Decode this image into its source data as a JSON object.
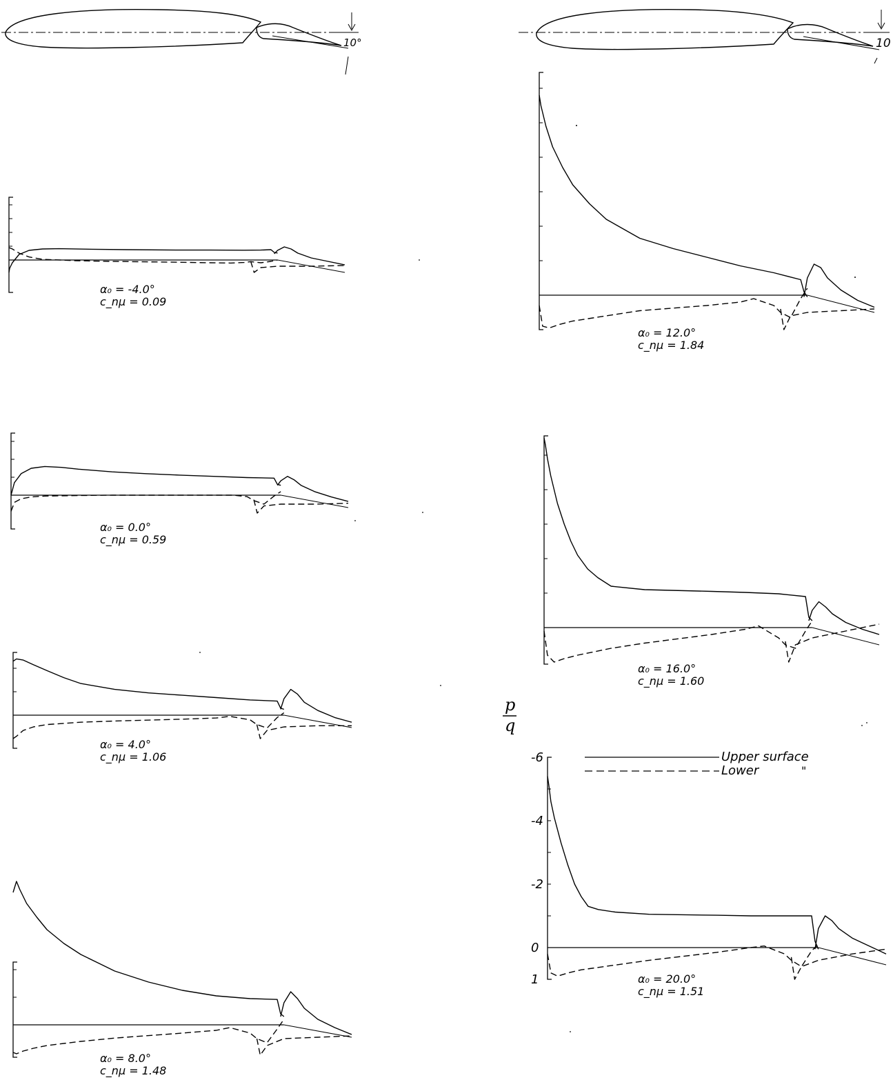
{
  "legend": {
    "upper_label": "Upper surface",
    "lower_label": "Lower",
    "lower_ditto": "\""
  },
  "airfoils": [
    {
      "flap_angle_label": "10°"
    },
    {
      "flap_angle_label": "10"
    }
  ],
  "ylabel": {
    "numerator": "p",
    "denominator": "q"
  },
  "colors": {
    "ink": "#000000",
    "paper": "#ffffff"
  },
  "chart_data": [
    {
      "type": "line",
      "alpha_label": "α₀ = -4.0°",
      "cmu_label": "c_nμ = 0.09",
      "ylim": [
        -6,
        1
      ],
      "series": [
        {
          "style": "solid",
          "x": [
            0,
            0.002,
            0.01,
            0.03,
            0.06,
            0.1,
            0.15,
            0.25,
            0.35,
            0.5,
            0.6,
            0.7,
            0.75,
            0.78,
            0.79,
            0.8
          ],
          "y": [
            0.9,
            0.6,
            0.2,
            -0.4,
            -0.7,
            -0.8,
            -0.82,
            -0.78,
            -0.75,
            -0.72,
            -0.72,
            -0.71,
            -0.72,
            -0.75,
            -0.55,
            -0.5
          ]
        },
        {
          "style": "dashed",
          "x": [
            0,
            0.01,
            0.03,
            0.06,
            0.1,
            0.2,
            0.3,
            0.5,
            0.6,
            0.66,
            0.7,
            0.72,
            0.75,
            0.78,
            0.8
          ],
          "y": [
            -0.9,
            -0.8,
            -0.5,
            -0.22,
            -0.05,
            0.05,
            0.1,
            0.16,
            0.2,
            0.22,
            0.18,
            0.12,
            0.2,
            0.1,
            0.0
          ]
        },
        {
          "style": "solid",
          "x": [
            0.79,
            0.8,
            0.82,
            0.84,
            0.86,
            0.9,
            0.95,
            1.0
          ],
          "y": [
            -0.45,
            -0.7,
            -0.95,
            -0.8,
            -0.5,
            -0.15,
            0.1,
            0.35
          ]
        },
        {
          "style": "dashed",
          "x": [
            0.72,
            0.73,
            0.75,
            0.8,
            0.9,
            1.0
          ],
          "y": [
            0.1,
            0.9,
            0.55,
            0.45,
            0.45,
            0.4
          ]
        }
      ]
    },
    {
      "type": "line",
      "alpha_label": "α₀ = 0.0°",
      "cmu_label": "c_nμ = 0.59",
      "ylim": [
        -6,
        1
      ],
      "series": [
        {
          "style": "solid",
          "x": [
            0,
            0.01,
            0.03,
            0.06,
            0.1,
            0.15,
            0.2,
            0.3,
            0.4,
            0.5,
            0.6,
            0.7,
            0.78,
            0.79,
            0.8
          ],
          "y": [
            0,
            -0.7,
            -1.2,
            -1.5,
            -1.6,
            -1.55,
            -1.45,
            -1.3,
            -1.2,
            -1.12,
            -1.05,
            -0.98,
            -0.95,
            -0.6,
            -0.55
          ]
        },
        {
          "style": "dashed",
          "x": [
            0,
            0.01,
            0.03,
            0.06,
            0.1,
            0.2,
            0.3,
            0.5,
            0.6,
            0.66,
            0.7,
            0.72,
            0.75,
            0.78,
            0.8
          ],
          "y": [
            0.9,
            0.4,
            0.2,
            0.1,
            0.05,
            0.02,
            0.0,
            0.0,
            0.0,
            0.0,
            0.08,
            0.3,
            0.5,
            0.05,
            -0.2
          ]
        },
        {
          "style": "solid",
          "x": [
            0.79,
            0.8,
            0.82,
            0.84,
            0.86,
            0.9,
            0.95,
            1.0
          ],
          "y": [
            -0.55,
            -0.8,
            -1.05,
            -0.85,
            -0.55,
            -0.2,
            0.1,
            0.35
          ]
        },
        {
          "style": "dashed",
          "x": [
            0.72,
            0.73,
            0.75,
            0.8,
            0.9,
            1.0
          ],
          "y": [
            0.25,
            1.0,
            0.6,
            0.5,
            0.5,
            0.45
          ]
        }
      ]
    },
    {
      "type": "line",
      "alpha_label": "α₀ = 4.0°",
      "cmu_label": "c_nμ = 1.06",
      "ylim": [
        -6,
        1
      ],
      "series": [
        {
          "style": "solid",
          "x": [
            0,
            0.01,
            0.03,
            0.06,
            0.1,
            0.15,
            0.2,
            0.3,
            0.4,
            0.5,
            0.6,
            0.7,
            0.78,
            0.79,
            0.8
          ],
          "y": [
            -2.3,
            -2.4,
            -2.35,
            -2.15,
            -1.9,
            -1.6,
            -1.35,
            -1.1,
            -0.95,
            -0.85,
            -0.75,
            -0.65,
            -0.6,
            -0.3,
            -0.25
          ]
        },
        {
          "style": "dashed",
          "x": [
            0,
            0.01,
            0.03,
            0.06,
            0.1,
            0.2,
            0.3,
            0.5,
            0.6,
            0.64,
            0.7,
            0.72,
            0.75,
            0.78,
            0.8
          ],
          "y": [
            1.0,
            0.9,
            0.65,
            0.5,
            0.4,
            0.3,
            0.25,
            0.17,
            0.12,
            0.05,
            0.2,
            0.4,
            0.55,
            0.1,
            -0.1
          ]
        },
        {
          "style": "solid",
          "x": [
            0.79,
            0.8,
            0.82,
            0.84,
            0.86,
            0.9,
            0.95,
            1.0
          ],
          "y": [
            -0.25,
            -0.7,
            -1.1,
            -0.9,
            -0.55,
            -0.2,
            0.1,
            0.3
          ]
        },
        {
          "style": "dashed",
          "x": [
            0.72,
            0.73,
            0.75,
            0.8,
            0.9,
            1.0
          ],
          "y": [
            0.4,
            1.0,
            0.65,
            0.5,
            0.45,
            0.45
          ]
        }
      ]
    },
    {
      "type": "line",
      "alpha_label": "α₀ = 8.0°",
      "cmu_label": "c_nμ = 1.48",
      "ylim": [
        -6,
        1
      ],
      "series": [
        {
          "style": "solid",
          "x": [
            0,
            0.01,
            0.02,
            0.04,
            0.07,
            0.1,
            0.15,
            0.2,
            0.3,
            0.4,
            0.5,
            0.6,
            0.7,
            0.78,
            0.79,
            0.8
          ],
          "y": [
            -4.8,
            -5.2,
            -4.9,
            -4.4,
            -3.9,
            -3.45,
            -2.95,
            -2.55,
            -1.95,
            -1.55,
            -1.25,
            -1.05,
            -0.95,
            -0.92,
            -0.4,
            -0.3
          ]
        },
        {
          "style": "dashed",
          "x": [
            0,
            0.01,
            0.03,
            0.06,
            0.1,
            0.2,
            0.3,
            0.5,
            0.6,
            0.64,
            0.7,
            0.72,
            0.75,
            0.78,
            0.8
          ],
          "y": [
            1.0,
            1.05,
            0.95,
            0.85,
            0.75,
            0.6,
            0.48,
            0.3,
            0.2,
            0.1,
            0.3,
            0.5,
            0.65,
            0.15,
            -0.2
          ]
        },
        {
          "style": "solid",
          "x": [
            0.79,
            0.8,
            0.82,
            0.84,
            0.86,
            0.9,
            0.95,
            1.0
          ],
          "y": [
            -0.3,
            -0.8,
            -1.2,
            -0.95,
            -0.6,
            -0.2,
            0.1,
            0.35
          ]
        },
        {
          "style": "dashed",
          "x": [
            0.72,
            0.73,
            0.75,
            0.8,
            0.9,
            1.0
          ],
          "y": [
            0.5,
            1.1,
            0.75,
            0.5,
            0.45,
            0.4
          ]
        }
      ]
    },
    {
      "type": "line",
      "alpha_label": "α₀ = 12.0°",
      "cmu_label": "c_nμ = 1.84",
      "ylim": [
        -6,
        1
      ],
      "series": [
        {
          "style": "solid",
          "x": [
            0,
            0.005,
            0.02,
            0.04,
            0.07,
            0.1,
            0.15,
            0.2,
            0.3,
            0.4,
            0.5,
            0.6,
            0.7,
            0.78,
            0.79,
            0.8
          ],
          "y": [
            -5.8,
            -5.5,
            -4.9,
            -4.3,
            -3.7,
            -3.2,
            -2.65,
            -2.2,
            -1.65,
            -1.35,
            -1.1,
            -0.85,
            -0.65,
            -0.45,
            -0.1,
            0.05
          ]
        },
        {
          "style": "dashed",
          "x": [
            0,
            0.01,
            0.03,
            0.06,
            0.1,
            0.2,
            0.3,
            0.5,
            0.6,
            0.64,
            0.7,
            0.72,
            0.75,
            0.78,
            0.8
          ],
          "y": [
            0.3,
            0.9,
            0.95,
            0.85,
            0.75,
            0.6,
            0.45,
            0.3,
            0.2,
            0.1,
            0.3,
            0.5,
            0.65,
            0.1,
            -0.2
          ]
        },
        {
          "style": "solid",
          "x": [
            0.79,
            0.8,
            0.82,
            0.84,
            0.86,
            0.9,
            0.95,
            1.0
          ],
          "y": [
            0.05,
            -0.5,
            -0.9,
            -0.8,
            -0.5,
            -0.15,
            0.15,
            0.35
          ]
        },
        {
          "style": "dashed",
          "x": [
            0.72,
            0.73,
            0.75,
            0.8,
            0.9,
            1.0
          ],
          "y": [
            0.4,
            1.0,
            0.6,
            0.5,
            0.45,
            0.4
          ]
        }
      ]
    },
    {
      "type": "line",
      "alpha_label": "α₀ = 16.0°",
      "cmu_label": "c_nμ = 1.60",
      "ylim": [
        -6,
        1
      ],
      "series": [
        {
          "style": "solid",
          "x": [
            0,
            0.004,
            0.01,
            0.02,
            0.04,
            0.06,
            0.08,
            0.1,
            0.13,
            0.16,
            0.2,
            0.3,
            0.5,
            0.6,
            0.7,
            0.78,
            0.79,
            0.8
          ],
          "y": [
            -5.5,
            -5.3,
            -4.9,
            -4.4,
            -3.6,
            -3.0,
            -2.5,
            -2.1,
            -1.7,
            -1.45,
            -1.2,
            -1.1,
            -1.05,
            -1.02,
            -0.98,
            -0.9,
            -0.3,
            -0.2
          ]
        },
        {
          "style": "dashed",
          "x": [
            0,
            0.01,
            0.03,
            0.06,
            0.1,
            0.2,
            0.3,
            0.5,
            0.6,
            0.64,
            0.7,
            0.72,
            0.75,
            0.78,
            0.8
          ],
          "y": [
            0.1,
            0.8,
            1.0,
            0.9,
            0.8,
            0.6,
            0.45,
            0.2,
            0.05,
            -0.05,
            0.3,
            0.5,
            0.6,
            0.1,
            -0.2
          ]
        },
        {
          "style": "solid",
          "x": [
            0.79,
            0.8,
            0.82,
            0.84,
            0.86,
            0.9,
            0.95,
            1.0
          ],
          "y": [
            -0.2,
            -0.5,
            -0.75,
            -0.6,
            -0.4,
            -0.15,
            0.05,
            0.2
          ]
        },
        {
          "style": "dashed",
          "x": [
            0.72,
            0.73,
            0.75,
            0.8,
            0.9,
            1.0
          ],
          "y": [
            0.4,
            1.0,
            0.5,
            0.3,
            0.1,
            -0.1
          ]
        }
      ]
    },
    {
      "type": "line",
      "alpha_label": "α₀ = 20.0°",
      "cmu_label": "c_nμ = 1.51",
      "xlabel": "",
      "ylim": [
        -6,
        1
      ],
      "yticks": [
        -6,
        -4,
        -2,
        0,
        1
      ],
      "ytick_labels": [
        "-6",
        "-4",
        "-2",
        "0",
        "1"
      ],
      "series": [
        {
          "style": "solid",
          "x": [
            0,
            0.004,
            0.01,
            0.02,
            0.04,
            0.06,
            0.08,
            0.1,
            0.12,
            0.15,
            0.2,
            0.3,
            0.5,
            0.6,
            0.7,
            0.78,
            0.79,
            0.8
          ],
          "y": [
            -5.4,
            -5.1,
            -4.6,
            -4.1,
            -3.3,
            -2.6,
            -2.0,
            -1.6,
            -1.3,
            -1.2,
            -1.12,
            -1.05,
            -1.02,
            -1.0,
            -1.0,
            -1.0,
            -0.2,
            0.05
          ]
        },
        {
          "style": "dashed",
          "x": [
            0,
            0.01,
            0.03,
            0.06,
            0.1,
            0.2,
            0.3,
            0.5,
            0.6,
            0.64,
            0.7,
            0.72,
            0.75,
            0.78,
            0.8
          ],
          "y": [
            0.2,
            0.8,
            0.9,
            0.8,
            0.7,
            0.55,
            0.4,
            0.15,
            0.0,
            -0.05,
            0.2,
            0.4,
            0.6,
            0.1,
            -0.1
          ]
        },
        {
          "style": "solid",
          "x": [
            0.79,
            0.8,
            0.82,
            0.84,
            0.86,
            0.9,
            0.95,
            1.0
          ],
          "y": [
            0.05,
            -0.6,
            -1.0,
            -0.85,
            -0.6,
            -0.3,
            -0.05,
            0.2
          ]
        },
        {
          "style": "dashed",
          "x": [
            0.72,
            0.73,
            0.75,
            0.8,
            0.9,
            1.0
          ],
          "y": [
            0.3,
            1.0,
            0.6,
            0.4,
            0.2,
            0.05
          ]
        }
      ]
    }
  ]
}
